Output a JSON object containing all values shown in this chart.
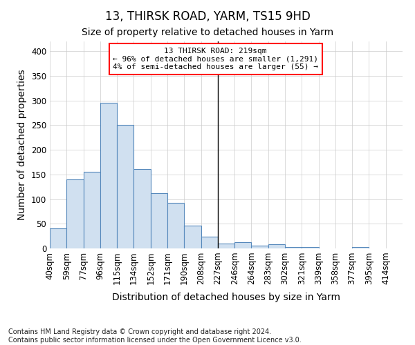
{
  "title": "13, THIRSK ROAD, YARM, TS15 9HD",
  "subtitle": "Size of property relative to detached houses in Yarm",
  "xlabel": "Distribution of detached houses by size in Yarm",
  "ylabel": "Number of detached properties",
  "footer_line1": "Contains HM Land Registry data © Crown copyright and database right 2024.",
  "footer_line2": "Contains public sector information licensed under the Open Government Licence v3.0.",
  "bin_labels": [
    "40sqm",
    "59sqm",
    "77sqm",
    "96sqm",
    "115sqm",
    "134sqm",
    "152sqm",
    "171sqm",
    "190sqm",
    "208sqm",
    "227sqm",
    "246sqm",
    "264sqm",
    "283sqm",
    "302sqm",
    "321sqm",
    "339sqm",
    "358sqm",
    "377sqm",
    "395sqm",
    "414sqm"
  ],
  "bar_values": [
    40,
    140,
    155,
    295,
    251,
    161,
    112,
    92,
    46,
    24,
    10,
    13,
    5,
    8,
    3,
    3,
    0,
    0,
    3,
    0,
    0
  ],
  "bar_color": "#d0e0f0",
  "bar_edge_color": "#5588bb",
  "bar_edge_width": 0.8,
  "grid_color": "#cccccc",
  "background_color": "#ffffff",
  "plot_bg_color": "#ffffff",
  "ylim": [
    0,
    420
  ],
  "yticks": [
    0,
    50,
    100,
    150,
    200,
    250,
    300,
    350,
    400
  ],
  "vline_x_index": 10,
  "vline_color": "#000000",
  "annotation_text_line1": "13 THIRSK ROAD: 219sqm",
  "annotation_text_line2": "← 96% of detached houses are smaller (1,291)",
  "annotation_text_line3": "4% of semi-detached houses are larger (55) →",
  "title_fontsize": 12,
  "subtitle_fontsize": 10,
  "axis_label_fontsize": 10,
  "tick_label_fontsize": 8.5,
  "annotation_fontsize": 8,
  "footer_fontsize": 7
}
